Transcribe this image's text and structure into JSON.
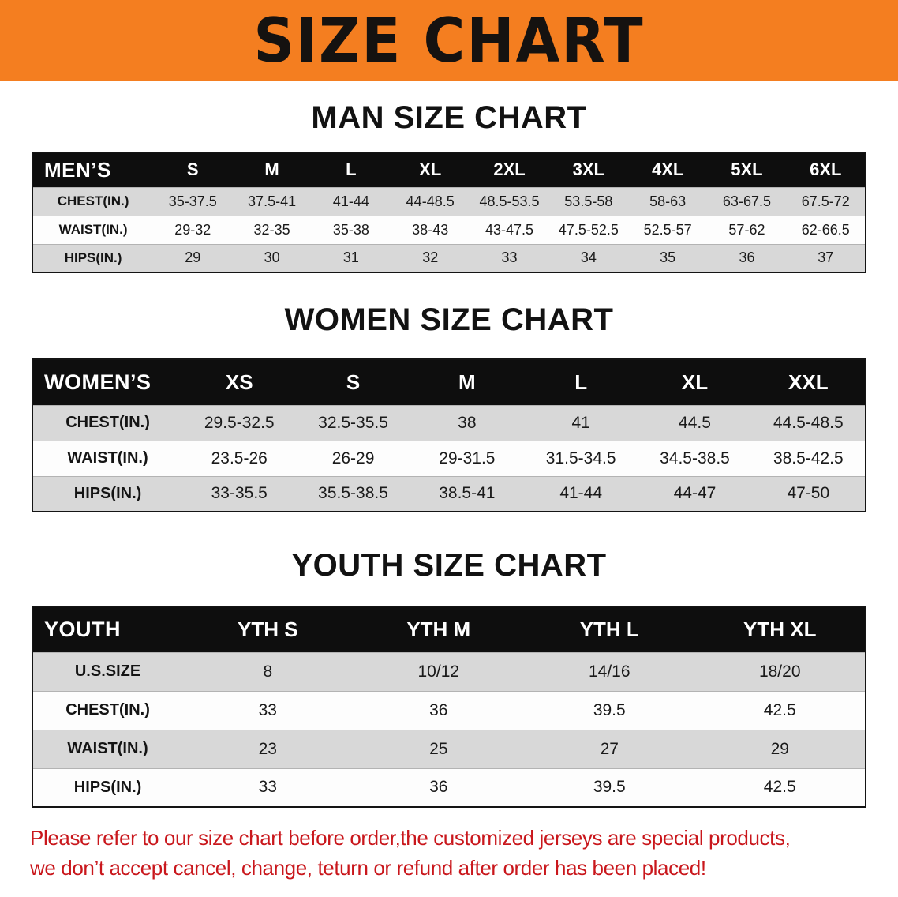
{
  "banner": {
    "title": "SIZE CHART",
    "bg_color": "#F47E20",
    "text_color": "#151210"
  },
  "chart_data": [
    {
      "type": "table",
      "title": "MAN SIZE CHART",
      "corner_label": "MEN’S",
      "columns": [
        "S",
        "M",
        "L",
        "XL",
        "2XL",
        "3XL",
        "4XL",
        "5XL",
        "6XL"
      ],
      "rows": [
        {
          "label": "CHEST(IN.)",
          "values": [
            "35-37.5",
            "37.5-41",
            "41-44",
            "44-48.5",
            "48.5-53.5",
            "53.5-58",
            "58-63",
            "63-67.5",
            "67.5-72"
          ]
        },
        {
          "label": "WAIST(IN.)",
          "values": [
            "29-32",
            "32-35",
            "35-38",
            "38-43",
            "43-47.5",
            "47.5-52.5",
            "52.5-57",
            "57-62",
            "62-66.5"
          ]
        },
        {
          "label": "HIPS(IN.)",
          "values": [
            "29",
            "30",
            "31",
            "32",
            "33",
            "34",
            "35",
            "36",
            "37"
          ]
        }
      ]
    },
    {
      "type": "table",
      "title": "WOMEN SIZE CHART",
      "corner_label": "WOMEN’S",
      "columns": [
        "XS",
        "S",
        "M",
        "L",
        "XL",
        "XXL"
      ],
      "rows": [
        {
          "label": "CHEST(IN.)",
          "values": [
            "29.5-32.5",
            "32.5-35.5",
            "38",
            "41",
            "44.5",
            "44.5-48.5"
          ]
        },
        {
          "label": "WAIST(IN.)",
          "values": [
            "23.5-26",
            "26-29",
            "29-31.5",
            "31.5-34.5",
            "34.5-38.5",
            "38.5-42.5"
          ]
        },
        {
          "label": "HIPS(IN.)",
          "values": [
            "33-35.5",
            "35.5-38.5",
            "38.5-41",
            "41-44",
            "44-47",
            "47-50"
          ]
        }
      ]
    },
    {
      "type": "table",
      "title": "YOUTH SIZE CHART",
      "corner_label": "YOUTH",
      "columns": [
        "YTH S",
        "YTH M",
        "YTH L",
        "YTH XL"
      ],
      "rows": [
        {
          "label": "U.S.SIZE",
          "values": [
            "8",
            "10/12",
            "14/16",
            "18/20"
          ]
        },
        {
          "label": "CHEST(IN.)",
          "values": [
            "33",
            "36",
            "39.5",
            "42.5"
          ]
        },
        {
          "label": "WAIST(IN.)",
          "values": [
            "23",
            "25",
            "27",
            "29"
          ]
        },
        {
          "label": "HIPS(IN.)",
          "values": [
            "33",
            "36",
            "39.5",
            "42.5"
          ]
        }
      ]
    }
  ],
  "disclaimer": {
    "text_color": "#C9171C",
    "lines": [
      "Please refer to our size chart before order,the customized jerseys are special products,",
      "we don’t accept cancel, change, teturn or refund after order has been placed!"
    ]
  }
}
